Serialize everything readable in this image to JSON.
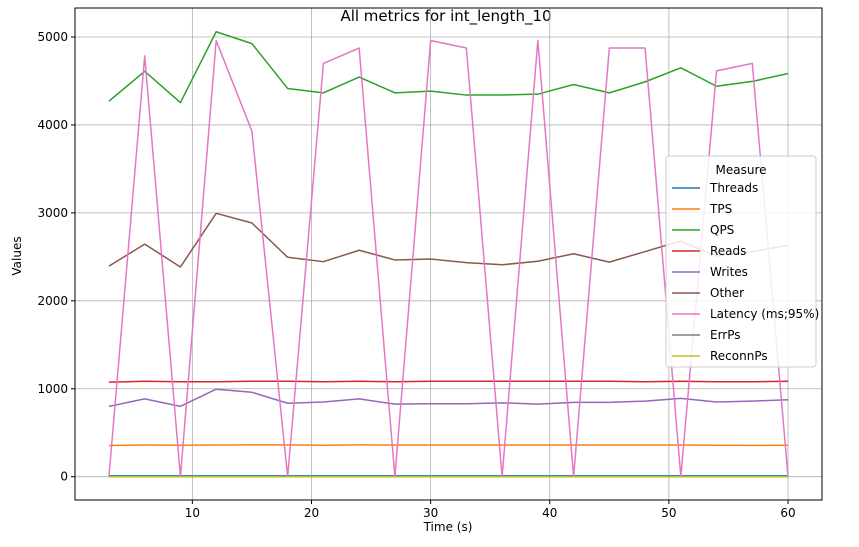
{
  "chart_data": {
    "type": "line",
    "title": "All metrics for int_length_10",
    "xlabel": "Time (s)",
    "ylabel": "Values",
    "xlim": [
      0.15,
      62.85
    ],
    "ylim": [
      -265,
      5330
    ],
    "xticks": [
      10,
      20,
      30,
      40,
      50,
      60
    ],
    "yticks": [
      0,
      1000,
      2000,
      3000,
      4000,
      5000
    ],
    "grid": true,
    "legend": {
      "title": "Measure",
      "placement": "center-right"
    },
    "x": [
      3,
      6,
      9,
      12,
      15,
      18,
      21,
      24,
      27,
      30,
      33,
      36,
      39,
      42,
      45,
      48,
      51,
      54,
      57,
      60
    ],
    "series": [
      {
        "name": "Threads",
        "color": "#1f77b4",
        "values": [
          10,
          10,
          10,
          10,
          10,
          10,
          10,
          10,
          10,
          10,
          10,
          10,
          10,
          10,
          10,
          10,
          10,
          10,
          10,
          10
        ]
      },
      {
        "name": "TPS",
        "color": "#ff7f0e",
        "values": [
          355,
          360,
          358,
          360,
          362,
          362,
          358,
          362,
          360,
          360,
          360,
          360,
          360,
          360,
          360,
          360,
          360,
          358,
          356,
          358
        ]
      },
      {
        "name": "QPS",
        "color": "#2ca02c",
        "values": [
          4270,
          4610,
          4255,
          5060,
          4925,
          4415,
          4365,
          4545,
          4365,
          4385,
          4340,
          4340,
          4350,
          4460,
          4365,
          4490,
          4650,
          4440,
          4495,
          4585
        ]
      },
      {
        "name": "Reads",
        "color": "#d62728",
        "values": [
          1075,
          1085,
          1080,
          1080,
          1085,
          1085,
          1080,
          1085,
          1080,
          1085,
          1085,
          1085,
          1085,
          1085,
          1085,
          1080,
          1085,
          1080,
          1080,
          1085
        ]
      },
      {
        "name": "Writes",
        "color": "#9467bd",
        "values": [
          800,
          885,
          800,
          995,
          960,
          835,
          850,
          885,
          825,
          830,
          830,
          840,
          825,
          845,
          845,
          860,
          890,
          850,
          860,
          875
        ]
      },
      {
        "name": "Other",
        "color": "#8c564b",
        "values": [
          2395,
          2645,
          2385,
          2995,
          2885,
          2495,
          2445,
          2575,
          2465,
          2475,
          2435,
          2410,
          2450,
          2535,
          2440,
          2560,
          2680,
          2510,
          2560,
          2630
        ]
      },
      {
        "name": "Latency (ms;95%)",
        "color": "#e377c2",
        "values": [
          0,
          4785,
          0,
          4960,
          3930,
          0,
          4700,
          4875,
          0,
          4960,
          4875,
          0,
          4960,
          0,
          4875,
          4875,
          0,
          4615,
          4700,
          0
        ]
      },
      {
        "name": "ErrPs",
        "color": "#7f7f7f",
        "values": [
          0,
          0,
          0,
          0,
          0,
          0,
          0,
          0,
          0,
          0,
          0,
          0,
          0,
          0,
          0,
          0,
          0,
          0,
          0,
          0
        ]
      },
      {
        "name": "ReconnPs",
        "color": "#bcbd22",
        "values": [
          0,
          0,
          0,
          0,
          0,
          0,
          0,
          0,
          0,
          0,
          0,
          0,
          0,
          0,
          0,
          0,
          0,
          0,
          0,
          0
        ]
      }
    ]
  }
}
